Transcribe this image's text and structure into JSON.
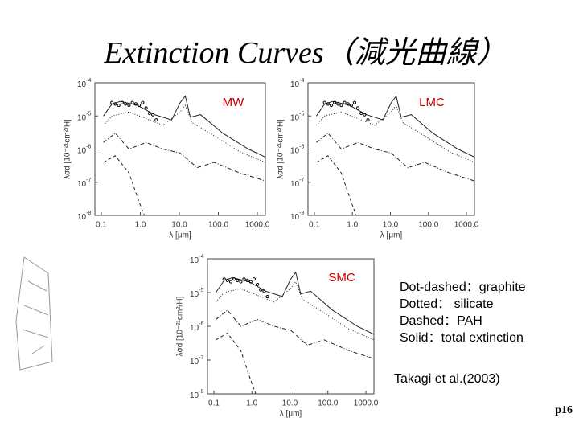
{
  "title": "Extinction Curves（減光曲線）",
  "panels": [
    {
      "label": "MW",
      "y_label": "λσd [10⁻²¹cm²/H]",
      "x_label": "λ [μm]",
      "y_ticks": [
        {
          "base": "10",
          "exponent": "-4"
        },
        {
          "base": "10",
          "exponent": "-5"
        },
        {
          "base": "10",
          "exponent": "-6"
        },
        {
          "base": "10",
          "exponent": "-7"
        },
        {
          "base": "10",
          "exponent": "-8"
        }
      ],
      "x_ticks": [
        "0.1",
        "1.0",
        "10.0",
        "100.0",
        "1000.0"
      ]
    },
    {
      "label": "LMC",
      "y_label": "λσd [10⁻²¹cm²/H]",
      "x_label": "λ [μm]",
      "y_ticks": [
        {
          "base": "10",
          "exponent": "-4"
        },
        {
          "base": "10",
          "exponent": "-5"
        },
        {
          "base": "10",
          "exponent": "-6"
        },
        {
          "base": "10",
          "exponent": "-7"
        },
        {
          "base": "10",
          "exponent": "-8"
        }
      ],
      "x_ticks": [
        "0.1",
        "1.0",
        "10.0",
        "100.0",
        "1000.0"
      ]
    },
    {
      "label": "SMC",
      "y_label": "λσd [10⁻²¹cm²/H]",
      "x_label": "λ [μm]",
      "y_ticks": [
        {
          "base": "10",
          "exponent": "-4"
        },
        {
          "base": "10",
          "exponent": "-5"
        },
        {
          "base": "10",
          "exponent": "-6"
        },
        {
          "base": "10",
          "exponent": "-7"
        },
        {
          "base": "10",
          "exponent": "-8"
        }
      ],
      "x_ticks": [
        "0.1",
        "1.0",
        "10.0",
        "100.0",
        "1000.0"
      ]
    }
  ],
  "legend": [
    "Dot-dashed：graphite",
    "Dotted： silicate",
    "Dashed：PAH",
    "Solid：total extinction"
  ],
  "citation": "Takagi et al.(2003)",
  "page_number": "p16"
}
